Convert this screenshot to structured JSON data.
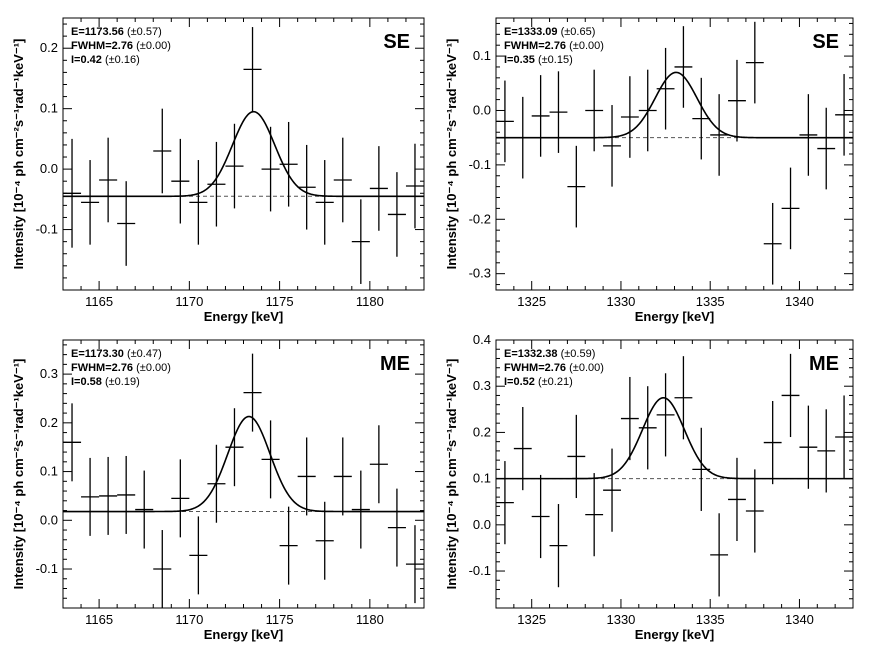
{
  "chart_data": [
    {
      "type": "line",
      "region": "SE",
      "fit": {
        "E": "1173.56",
        "E_err": "(±0.57)",
        "FWHM": "2.76",
        "FWHM_err": "(±0.00)",
        "I": "0.42",
        "I_err": "(±0.16)"
      },
      "xlabel": "Energy [keV]",
      "ylabel": "Intensity [10⁻⁴ ph cm⁻²s⁻¹rad⁻¹keV⁻¹]",
      "xlim": [
        1163,
        1183
      ],
      "ylim": [
        -0.2,
        0.25
      ],
      "xticks": [
        1165,
        1170,
        1175,
        1180
      ],
      "yticks": [
        -0.1,
        0.0,
        0.1,
        0.2
      ],
      "baseline": -0.045,
      "gauss": {
        "center": 1173.56,
        "amplitude": 0.14,
        "fwhm": 2.76
      },
      "points": [
        {
          "x": 1163.5,
          "y": -0.04,
          "err": 0.09
        },
        {
          "x": 1164.5,
          "y": -0.055,
          "err": 0.07
        },
        {
          "x": 1165.5,
          "y": -0.018,
          "err": 0.07
        },
        {
          "x": 1166.5,
          "y": -0.09,
          "err": 0.07
        },
        {
          "x": 1168.5,
          "y": 0.03,
          "err": 0.07
        },
        {
          "x": 1169.5,
          "y": -0.02,
          "err": 0.07
        },
        {
          "x": 1170.5,
          "y": -0.055,
          "err": 0.07
        },
        {
          "x": 1171.5,
          "y": -0.025,
          "err": 0.07
        },
        {
          "x": 1172.5,
          "y": 0.005,
          "err": 0.07
        },
        {
          "x": 1173.5,
          "y": 0.165,
          "err": 0.07
        },
        {
          "x": 1174.5,
          "y": 0.0,
          "err": 0.07
        },
        {
          "x": 1175.5,
          "y": 0.008,
          "err": 0.07
        },
        {
          "x": 1176.5,
          "y": -0.03,
          "err": 0.07
        },
        {
          "x": 1177.5,
          "y": -0.055,
          "err": 0.07
        },
        {
          "x": 1178.5,
          "y": -0.018,
          "err": 0.07
        },
        {
          "x": 1179.5,
          "y": -0.12,
          "err": 0.07
        },
        {
          "x": 1180.5,
          "y": -0.032,
          "err": 0.07
        },
        {
          "x": 1181.5,
          "y": -0.075,
          "err": 0.07
        },
        {
          "x": 1182.5,
          "y": -0.028,
          "err": 0.07
        }
      ]
    },
    {
      "type": "line",
      "region": "SE",
      "fit": {
        "E": "1333.09",
        "E_err": "(±0.65)",
        "FWHM": "2.76",
        "FWHM_err": "(±0.00)",
        "I": "0.35",
        "I_err": "(±0.15)"
      },
      "xlabel": "Energy [keV]",
      "ylabel": "Intensity [10⁻⁴ ph cm⁻²s⁻¹rad⁻¹keV⁻¹]",
      "xlim": [
        1323,
        1343
      ],
      "ylim": [
        -0.33,
        0.17
      ],
      "xticks": [
        1325,
        1330,
        1335,
        1340
      ],
      "yticks": [
        -0.3,
        -0.2,
        -0.1,
        0.0,
        0.1
      ],
      "baseline": -0.05,
      "gauss": {
        "center": 1333.09,
        "amplitude": 0.12,
        "fwhm": 2.76
      },
      "points": [
        {
          "x": 1323.5,
          "y": -0.02,
          "err": 0.075
        },
        {
          "x": 1324.5,
          "y": -0.05,
          "err": 0.075
        },
        {
          "x": 1325.5,
          "y": -0.01,
          "err": 0.075
        },
        {
          "x": 1326.5,
          "y": -0.003,
          "err": 0.075
        },
        {
          "x": 1327.5,
          "y": -0.14,
          "err": 0.075
        },
        {
          "x": 1328.5,
          "y": 0.0,
          "err": 0.075
        },
        {
          "x": 1329.5,
          "y": -0.065,
          "err": 0.075
        },
        {
          "x": 1330.5,
          "y": -0.012,
          "err": 0.075
        },
        {
          "x": 1331.5,
          "y": 0.0,
          "err": 0.075
        },
        {
          "x": 1332.5,
          "y": 0.04,
          "err": 0.075
        },
        {
          "x": 1333.5,
          "y": 0.08,
          "err": 0.075
        },
        {
          "x": 1334.5,
          "y": -0.015,
          "err": 0.075
        },
        {
          "x": 1335.5,
          "y": -0.045,
          "err": 0.075
        },
        {
          "x": 1336.5,
          "y": 0.018,
          "err": 0.075
        },
        {
          "x": 1337.5,
          "y": 0.088,
          "err": 0.075
        },
        {
          "x": 1338.5,
          "y": -0.245,
          "err": 0.075
        },
        {
          "x": 1339.5,
          "y": -0.18,
          "err": 0.075
        },
        {
          "x": 1340.5,
          "y": -0.045,
          "err": 0.075
        },
        {
          "x": 1341.5,
          "y": -0.07,
          "err": 0.075
        },
        {
          "x": 1342.5,
          "y": -0.008,
          "err": 0.075
        }
      ]
    },
    {
      "type": "line",
      "region": "ME",
      "fit": {
        "E": "1173.30",
        "E_err": "(±0.47)",
        "FWHM": "2.76",
        "FWHM_err": "(±0.00)",
        "I": "0.58",
        "I_err": "(±0.19)"
      },
      "xlabel": "Energy [keV]",
      "ylabel": "Intensity [10⁻⁴ ph cm⁻²s⁻¹rad⁻¹keV⁻¹]",
      "xlim": [
        1163,
        1183
      ],
      "ylim": [
        -0.18,
        0.37
      ],
      "xticks": [
        1165,
        1170,
        1175,
        1180
      ],
      "yticks": [
        -0.1,
        0.0,
        0.1,
        0.2,
        0.3
      ],
      "baseline": 0.018,
      "gauss": {
        "center": 1173.3,
        "amplitude": 0.195,
        "fwhm": 2.76
      },
      "points": [
        {
          "x": 1163.5,
          "y": 0.16,
          "err": 0.08
        },
        {
          "x": 1164.5,
          "y": 0.048,
          "err": 0.08
        },
        {
          "x": 1165.5,
          "y": 0.05,
          "err": 0.08
        },
        {
          "x": 1166.5,
          "y": 0.052,
          "err": 0.08
        },
        {
          "x": 1167.5,
          "y": 0.022,
          "err": 0.08
        },
        {
          "x": 1168.5,
          "y": -0.1,
          "err": 0.08
        },
        {
          "x": 1169.5,
          "y": 0.045,
          "err": 0.08
        },
        {
          "x": 1170.5,
          "y": -0.072,
          "err": 0.08
        },
        {
          "x": 1171.5,
          "y": 0.075,
          "err": 0.08
        },
        {
          "x": 1172.5,
          "y": 0.15,
          "err": 0.08
        },
        {
          "x": 1173.5,
          "y": 0.262,
          "err": 0.08
        },
        {
          "x": 1174.5,
          "y": 0.125,
          "err": 0.08
        },
        {
          "x": 1175.5,
          "y": -0.052,
          "err": 0.08
        },
        {
          "x": 1176.5,
          "y": 0.09,
          "err": 0.08
        },
        {
          "x": 1177.5,
          "y": -0.042,
          "err": 0.08
        },
        {
          "x": 1178.5,
          "y": 0.09,
          "err": 0.08
        },
        {
          "x": 1179.5,
          "y": 0.022,
          "err": 0.08
        },
        {
          "x": 1180.5,
          "y": 0.115,
          "err": 0.08
        },
        {
          "x": 1181.5,
          "y": -0.015,
          "err": 0.08
        },
        {
          "x": 1182.5,
          "y": -0.09,
          "err": 0.08
        }
      ]
    },
    {
      "type": "line",
      "region": "ME",
      "fit": {
        "E": "1332.38",
        "E_err": "(±0.59)",
        "FWHM": "2.76",
        "FWHM_err": "(±0.00)",
        "I": "0.52",
        "I_err": "(±0.21)"
      },
      "xlabel": "Energy [keV]",
      "ylabel": "Intensity [10⁻⁴ ph cm⁻²s⁻¹rad⁻¹keV⁻¹]",
      "xlim": [
        1323,
        1343
      ],
      "ylim": [
        -0.18,
        0.4
      ],
      "xticks": [
        1325,
        1330,
        1335,
        1340
      ],
      "yticks": [
        -0.1,
        0.0,
        0.1,
        0.2,
        0.3,
        0.4
      ],
      "baseline": 0.1,
      "gauss": {
        "center": 1332.38,
        "amplitude": 0.175,
        "fwhm": 2.76
      },
      "points": [
        {
          "x": 1323.5,
          "y": 0.048,
          "err": 0.09
        },
        {
          "x": 1324.5,
          "y": 0.165,
          "err": 0.09
        },
        {
          "x": 1325.5,
          "y": 0.018,
          "err": 0.09
        },
        {
          "x": 1326.5,
          "y": -0.045,
          "err": 0.09
        },
        {
          "x": 1327.5,
          "y": 0.148,
          "err": 0.09
        },
        {
          "x": 1328.5,
          "y": 0.022,
          "err": 0.09
        },
        {
          "x": 1329.5,
          "y": 0.075,
          "err": 0.09
        },
        {
          "x": 1330.5,
          "y": 0.23,
          "err": 0.09
        },
        {
          "x": 1331.5,
          "y": 0.21,
          "err": 0.09
        },
        {
          "x": 1332.5,
          "y": 0.238,
          "err": 0.09
        },
        {
          "x": 1333.5,
          "y": 0.275,
          "err": 0.09
        },
        {
          "x": 1334.5,
          "y": 0.12,
          "err": 0.09
        },
        {
          "x": 1335.5,
          "y": -0.065,
          "err": 0.09
        },
        {
          "x": 1336.5,
          "y": 0.055,
          "err": 0.09
        },
        {
          "x": 1337.5,
          "y": 0.03,
          "err": 0.09
        },
        {
          "x": 1338.5,
          "y": 0.178,
          "err": 0.09
        },
        {
          "x": 1339.5,
          "y": 0.28,
          "err": 0.09
        },
        {
          "x": 1340.5,
          "y": 0.168,
          "err": 0.09
        },
        {
          "x": 1341.5,
          "y": 0.16,
          "err": 0.09
        },
        {
          "x": 1342.5,
          "y": 0.19,
          "err": 0.09
        }
      ]
    }
  ]
}
